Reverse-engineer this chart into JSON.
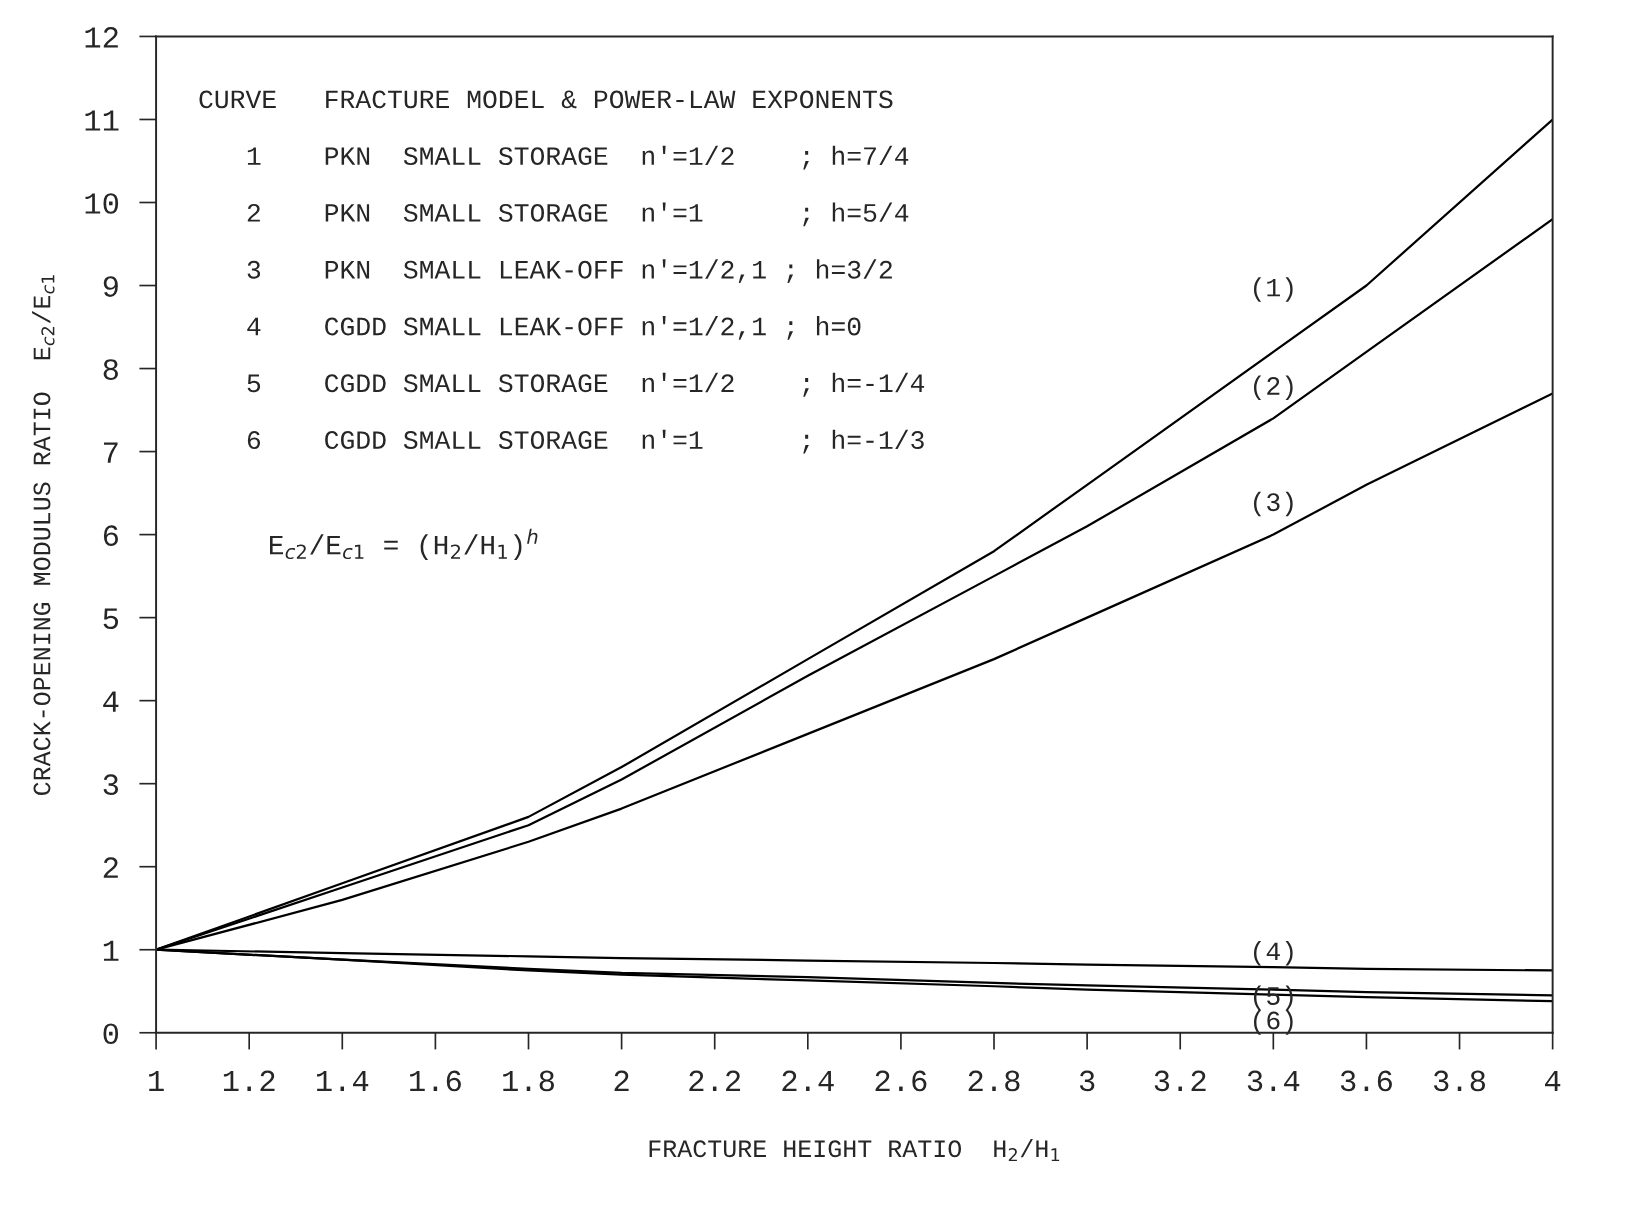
{
  "chart_data": {
    "type": "line",
    "xlabel": "FRACTURE HEIGHT RATIO  H$_{2}$/H$_{1}$",
    "ylabel": "CRACK-OPENING MODULUS RATIO  E$_{c2}$/E$_{c1}$",
    "x": [
      1,
      1.4,
      1.8,
      2,
      2.4,
      2.8,
      3,
      3.4,
      3.6,
      4
    ],
    "series": [
      {
        "color": "#000000",
        "values": [
          1,
          1.8,
          2.6,
          3.2,
          4.5,
          5.8,
          6.6,
          8.2,
          9.0,
          11.0
        ]
      },
      {
        "color": "#000000",
        "values": [
          1,
          1.75,
          2.5,
          3.05,
          4.3,
          5.5,
          6.1,
          7.4,
          8.2,
          9.8
        ]
      },
      {
        "color": "#000000",
        "values": [
          1,
          1.6,
          2.3,
          2.7,
          3.6,
          4.5,
          5.0,
          6.0,
          6.6,
          7.7
        ]
      },
      {
        "color": "#000000",
        "values": [
          1,
          0.96,
          0.92,
          0.9,
          0.87,
          0.84,
          0.82,
          0.79,
          0.77,
          0.75
        ]
      },
      {
        "color": "#000000",
        "values": [
          1,
          0.88,
          0.77,
          0.72,
          0.67,
          0.6,
          0.57,
          0.52,
          0.49,
          0.45
        ]
      },
      {
        "color": "#000000",
        "values": [
          1,
          0.88,
          0.75,
          0.7,
          0.63,
          0.56,
          0.52,
          0.46,
          0.43,
          0.38
        ]
      }
    ],
    "xlim": [
      1,
      4
    ],
    "ylim": [
      0,
      12
    ],
    "xticks": [
      1,
      1.2,
      1.4,
      1.6,
      1.8,
      2,
      2.2,
      2.4,
      2.6,
      2.8,
      3,
      3.2,
      3.4,
      3.6,
      3.8,
      4
    ],
    "yticks": [
      0,
      1,
      2,
      3,
      4,
      5,
      6,
      7,
      8,
      9,
      10,
      11,
      12
    ],
    "grid": false,
    "legend": false,
    "marker": "none",
    "line_style": "solid",
    "annotations": [
      "CURVE",
      "FRACTURE MODEL & POWER-LAW EXPONENTS",
      "1",
      "PKN  SMALL STORAGE  n'=1/2    ; h=7/4",
      "2",
      "PKN  SMALL STORAGE  n'=1      ; h=5/4",
      "3",
      "PKN  SMALL LEAK-OFF n'=1/2,1 ; h=3/2",
      "4",
      "CGDD SMALL LEAK-OFF n'=1/2,1 ; h=0",
      "5",
      "CGDD SMALL STORAGE  n'=1/2    ; h=-1/4",
      "6",
      "CGDD SMALL STORAGE  n'=1      ; h=-1/3",
      "E$_{c2}$/E$_{c1}$ = (H$_{2}$/H$_{1}$)$^{h}$",
      "(1)",
      "(2)",
      "(3)",
      "(4)",
      "(5)",
      "(6)"
    ]
  }
}
